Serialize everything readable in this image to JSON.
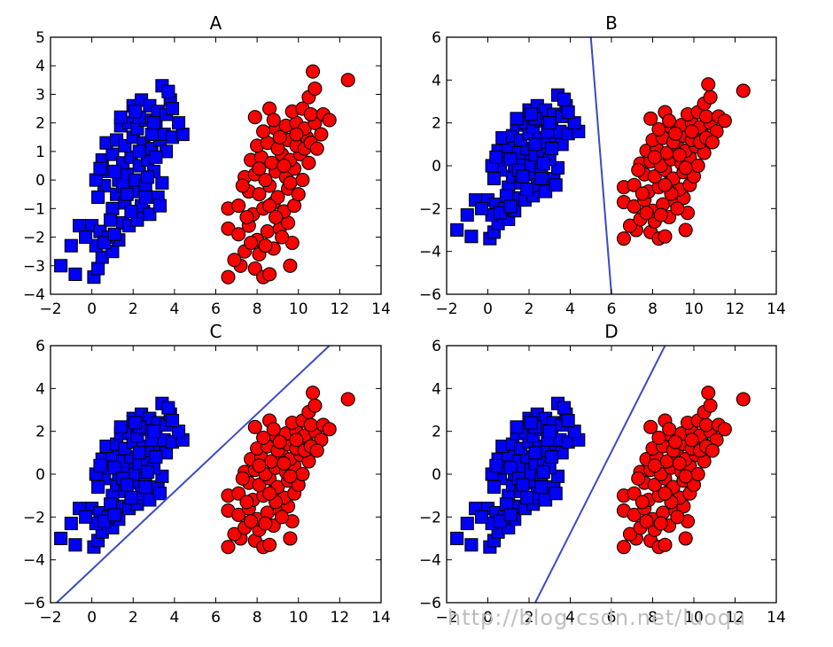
{
  "watermark": "http://blog.csdn.net/luoqu",
  "colors": {
    "blue_marker": "#0000ff",
    "red_marker": "#ff0000",
    "marker_edge": "#000000",
    "boundary_line": "#3a4bc4",
    "watermark": "#bdbdbd"
  },
  "chart_data": [
    {
      "type": "scatter",
      "title": "A",
      "xlim": [
        -2,
        14
      ],
      "ylim": [
        -4,
        5
      ],
      "xticks": [
        -2,
        0,
        2,
        4,
        6,
        8,
        10,
        12,
        14
      ],
      "yticks": [
        -4,
        -3,
        -2,
        -1,
        0,
        1,
        2,
        3,
        4,
        5
      ],
      "xtick_labels": [
        "−2",
        "0",
        "2",
        "4",
        "6",
        "8",
        "10",
        "12",
        "14"
      ],
      "ytick_labels": [
        "−4",
        "−3",
        "−2",
        "−1",
        "0",
        "1",
        "2",
        "3",
        "4",
        "5"
      ],
      "grid": false,
      "boundary": null
    },
    {
      "type": "scatter",
      "title": "B",
      "xlim": [
        -2,
        14
      ],
      "ylim": [
        -6,
        6
      ],
      "xticks": [
        -2,
        0,
        2,
        4,
        6,
        8,
        10,
        12,
        14
      ],
      "yticks": [
        -6,
        -4,
        -2,
        0,
        2,
        4,
        6
      ],
      "xtick_labels": [
        "−2",
        "0",
        "2",
        "4",
        "6",
        "8",
        "10",
        "12",
        "14"
      ],
      "ytick_labels": [
        "−6",
        "−4",
        "−2",
        "0",
        "2",
        "4",
        "6"
      ],
      "grid": false,
      "boundary": {
        "x": [
          5.0,
          6.0
        ],
        "y": [
          6,
          -6
        ]
      }
    },
    {
      "type": "scatter",
      "title": "C",
      "xlim": [
        -2,
        14
      ],
      "ylim": [
        -6,
        6
      ],
      "xticks": [
        -2,
        0,
        2,
        4,
        6,
        8,
        10,
        12,
        14
      ],
      "yticks": [
        -6,
        -4,
        -2,
        0,
        2,
        4,
        6
      ],
      "xtick_labels": [
        "−2",
        "0",
        "2",
        "4",
        "6",
        "8",
        "10",
        "12",
        "14"
      ],
      "ytick_labels": [
        "−6",
        "−4",
        "−2",
        "0",
        "2",
        "4",
        "6"
      ],
      "grid": false,
      "boundary": {
        "x": [
          -1.7,
          11.5
        ],
        "y": [
          -6,
          6
        ]
      }
    },
    {
      "type": "scatter",
      "title": "D",
      "xlim": [
        -2,
        14
      ],
      "ylim": [
        -6,
        6
      ],
      "xticks": [
        -2,
        0,
        2,
        4,
        6,
        8,
        10,
        12,
        14
      ],
      "yticks": [
        -6,
        -4,
        -2,
        0,
        2,
        4,
        6
      ],
      "xtick_labels": [
        "−2",
        "0",
        "2",
        "4",
        "6",
        "8",
        "10",
        "12",
        "14"
      ],
      "ytick_labels": [
        "−6",
        "−4",
        "−2",
        "0",
        "2",
        "4",
        "6"
      ],
      "grid": false,
      "boundary": {
        "x": [
          2.3,
          8.6
        ],
        "y": [
          -6,
          6
        ]
      }
    }
  ],
  "series": [
    {
      "marker": "square",
      "color": "#0000ff",
      "points": [
        [
          -1.5,
          -3.0
        ],
        [
          -0.8,
          -3.3
        ],
        [
          0.1,
          -3.4
        ],
        [
          0.3,
          -3.1
        ],
        [
          -1.0,
          -2.3
        ],
        [
          0.5,
          -2.7
        ],
        [
          1.0,
          -2.5
        ],
        [
          1.3,
          -2.1
        ],
        [
          -0.6,
          -1.6
        ],
        [
          0.0,
          -1.6
        ],
        [
          0.4,
          -1.8
        ],
        [
          0.8,
          -2.0
        ],
        [
          0.2,
          -2.3
        ],
        [
          1.5,
          -1.5
        ],
        [
          1.0,
          -1.0
        ],
        [
          1.8,
          -1.6
        ],
        [
          2.2,
          -1.4
        ],
        [
          2.5,
          -1.1
        ],
        [
          1.2,
          -0.5
        ],
        [
          1.6,
          -0.8
        ],
        [
          2.0,
          -0.4
        ],
        [
          2.4,
          -0.9
        ],
        [
          2.8,
          -1.2
        ],
        [
          0.6,
          -0.2
        ],
        [
          0.2,
          0.0
        ],
        [
          0.8,
          0.3
        ],
        [
          1.3,
          0.0
        ],
        [
          1.7,
          0.2
        ],
        [
          2.1,
          0.0
        ],
        [
          2.6,
          -0.2
        ],
        [
          3.2,
          -0.6
        ],
        [
          3.4,
          -0.1
        ],
        [
          0.5,
          0.7
        ],
        [
          1.0,
          0.9
        ],
        [
          1.5,
          0.6
        ],
        [
          1.9,
          0.8
        ],
        [
          2.3,
          0.5
        ],
        [
          2.7,
          0.7
        ],
        [
          3.0,
          0.3
        ],
        [
          0.7,
          1.3
        ],
        [
          1.2,
          1.4
        ],
        [
          1.6,
          1.2
        ],
        [
          2.0,
          1.5
        ],
        [
          2.5,
          1.3
        ],
        [
          2.9,
          1.1
        ],
        [
          3.3,
          1.4
        ],
        [
          3.6,
          1.0
        ],
        [
          1.4,
          1.9
        ],
        [
          1.8,
          2.0
        ],
        [
          2.2,
          1.8
        ],
        [
          2.6,
          2.1
        ],
        [
          3.1,
          1.9
        ],
        [
          3.5,
          1.6
        ],
        [
          3.9,
          1.5
        ],
        [
          4.4,
          1.6
        ],
        [
          4.2,
          2.0
        ],
        [
          2.0,
          2.6
        ],
        [
          2.4,
          2.8
        ],
        [
          2.8,
          2.6
        ],
        [
          3.2,
          2.4
        ],
        [
          3.6,
          2.3
        ],
        [
          3.8,
          2.8
        ],
        [
          2.3,
          2.2
        ],
        [
          3.4,
          3.3
        ],
        [
          3.7,
          3.1
        ],
        [
          3.9,
          2.5
        ],
        [
          1.1,
          0.3
        ],
        [
          1.5,
          -0.2
        ],
        [
          2.7,
          0.1
        ],
        [
          3.1,
          0.8
        ],
        [
          3.3,
          -0.9
        ],
        [
          0.3,
          -0.6
        ],
        [
          0.9,
          -1.4
        ],
        [
          1.9,
          -1.1
        ],
        [
          2.3,
          1.0
        ],
        [
          2.9,
          1.6
        ],
        [
          0.4,
          0.4
        ],
        [
          1.7,
          -0.5
        ],
        [
          2.1,
          2.4
        ],
        [
          3.0,
          2.0
        ],
        [
          -0.3,
          -2.0
        ],
        [
          0.6,
          -2.2
        ],
        [
          1.1,
          -1.9
        ],
        [
          1.4,
          2.2
        ],
        [
          2.6,
          -0.6
        ]
      ]
    },
    {
      "marker": "circle",
      "color": "#ff0000",
      "points": [
        [
          6.6,
          -3.4
        ],
        [
          7.2,
          -3.0
        ],
        [
          7.9,
          -3.1
        ],
        [
          8.3,
          -3.4
        ],
        [
          8.6,
          -3.3
        ],
        [
          9.6,
          -3.0
        ],
        [
          6.9,
          -2.8
        ],
        [
          7.4,
          -2.5
        ],
        [
          8.1,
          -2.6
        ],
        [
          8.8,
          -2.4
        ],
        [
          9.7,
          -2.2
        ],
        [
          6.6,
          -1.7
        ],
        [
          7.1,
          -1.9
        ],
        [
          7.6,
          -1.6
        ],
        [
          8.0,
          -2.1
        ],
        [
          8.5,
          -1.8
        ],
        [
          9.1,
          -1.7
        ],
        [
          9.5,
          -1.5
        ],
        [
          6.6,
          -1.0
        ],
        [
          7.1,
          -0.9
        ],
        [
          7.8,
          -1.2
        ],
        [
          8.3,
          -1.0
        ],
        [
          8.8,
          -0.8
        ],
        [
          9.3,
          -1.1
        ],
        [
          9.8,
          -0.9
        ],
        [
          7.6,
          -0.4
        ],
        [
          8.1,
          -0.5
        ],
        [
          8.6,
          -0.2
        ],
        [
          9.0,
          -0.6
        ],
        [
          9.5,
          -0.3
        ],
        [
          10.0,
          -0.5
        ],
        [
          7.4,
          0.1
        ],
        [
          7.9,
          0.2
        ],
        [
          8.4,
          0.0
        ],
        [
          8.9,
          0.3
        ],
        [
          9.4,
          0.1
        ],
        [
          9.8,
          0.4
        ],
        [
          10.2,
          0.0
        ],
        [
          7.7,
          0.7
        ],
        [
          8.2,
          0.8
        ],
        [
          8.7,
          0.6
        ],
        [
          9.2,
          0.9
        ],
        [
          9.6,
          0.7
        ],
        [
          10.1,
          0.9
        ],
        [
          10.5,
          0.6
        ],
        [
          8.0,
          1.2
        ],
        [
          8.5,
          1.3
        ],
        [
          9.0,
          1.1
        ],
        [
          9.5,
          1.4
        ],
        [
          9.9,
          1.2
        ],
        [
          10.4,
          1.5
        ],
        [
          8.9,
          1.8
        ],
        [
          9.4,
          1.9
        ],
        [
          9.9,
          2.0
        ],
        [
          10.3,
          1.8
        ],
        [
          10.8,
          2.0
        ],
        [
          11.1,
          1.6
        ],
        [
          7.9,
          2.2
        ],
        [
          9.7,
          2.4
        ],
        [
          10.2,
          2.5
        ],
        [
          10.6,
          2.3
        ],
        [
          11.2,
          2.3
        ],
        [
          11.5,
          2.1
        ],
        [
          8.6,
          2.5
        ],
        [
          10.5,
          2.9
        ],
        [
          10.8,
          3.2
        ],
        [
          10.7,
          3.8
        ],
        [
          12.4,
          3.5
        ],
        [
          8.3,
          1.7
        ],
        [
          7.5,
          -1.3
        ],
        [
          8.9,
          -1.3
        ],
        [
          9.3,
          0.5
        ],
        [
          10.3,
          1.1
        ],
        [
          7.3,
          -0.2
        ],
        [
          8.4,
          -2.3
        ],
        [
          9.2,
          -2.0
        ],
        [
          9.9,
          1.6
        ],
        [
          8.1,
          0.4
        ],
        [
          8.8,
          2.1
        ],
        [
          7.7,
          -2.2
        ],
        [
          10.6,
          1.3
        ],
        [
          9.6,
          -0.1
        ],
        [
          8.6,
          -0.9
        ],
        [
          10.9,
          1.1
        ],
        [
          9.1,
          1.5
        ]
      ]
    }
  ]
}
